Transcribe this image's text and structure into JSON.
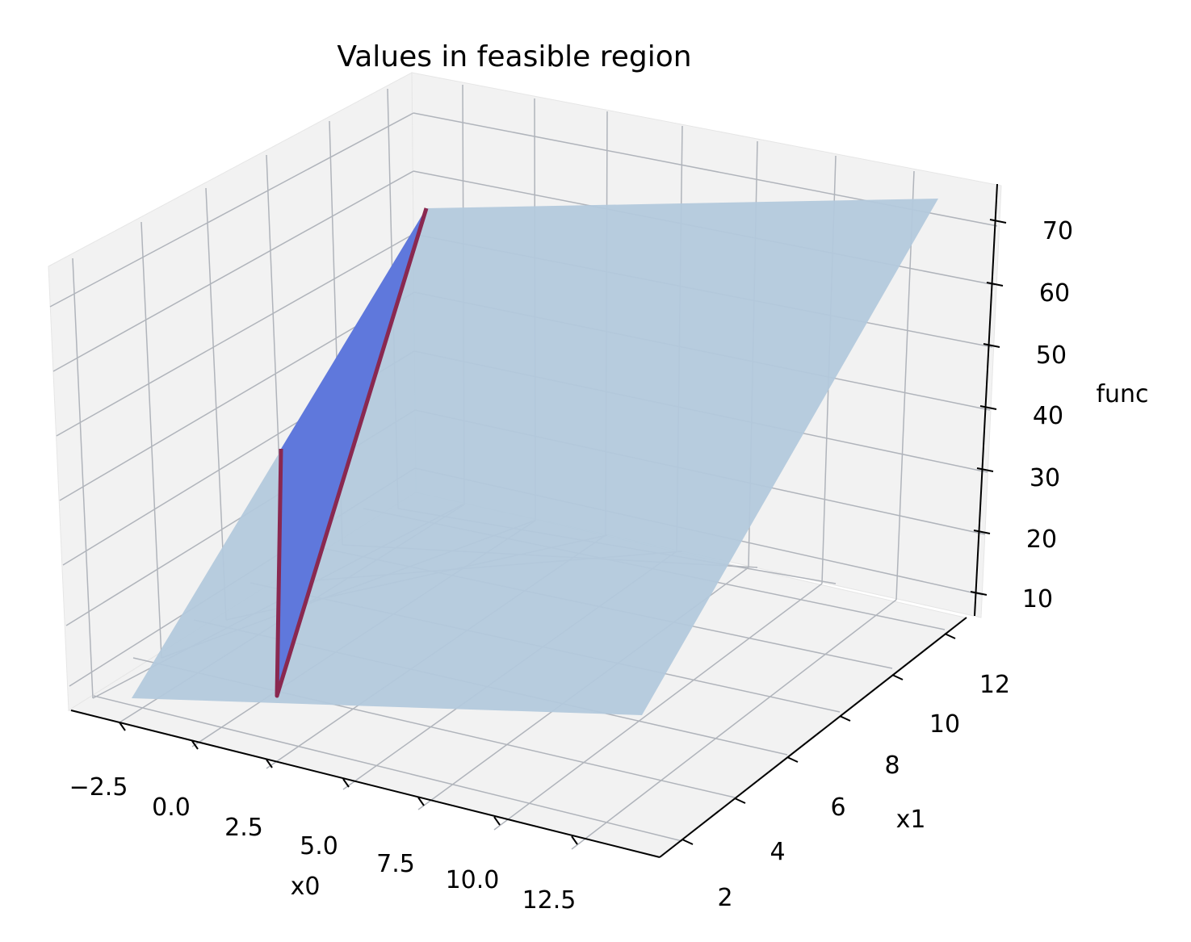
{
  "chart_data": {
    "type": "surface3d",
    "title": "Values in feasible region",
    "xlabel": "x0",
    "ylabel": "x1",
    "zlabel": "func",
    "x_ticks": [
      "−2.5",
      "0.0",
      "2.5",
      "5.0",
      "7.5",
      "10.0",
      "12.5"
    ],
    "y_ticks": [
      "2",
      "4",
      "6",
      "8",
      "10",
      "12"
    ],
    "z_ticks": [
      "10",
      "20",
      "30",
      "40",
      "50",
      "60",
      "70"
    ],
    "grid": true,
    "colors": {
      "background_surface": "#b3c9dc",
      "feasible_surface": "#5f78dc",
      "boundary_line": "#8a2850",
      "pane": "#f2f2f2",
      "grid": "#b0b4bb"
    }
  }
}
